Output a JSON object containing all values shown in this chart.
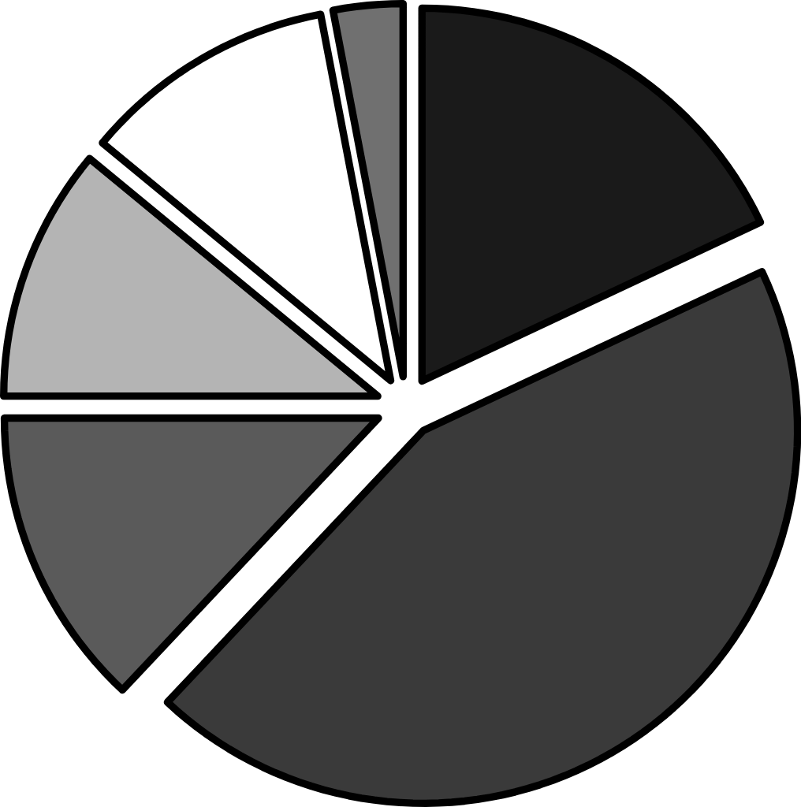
{
  "chart_data": {
    "type": "pie",
    "categories": [
      null,
      null,
      null,
      null,
      null,
      null
    ],
    "values": [
      18,
      44,
      13,
      11,
      11,
      3
    ],
    "colors": [
      "#1a1a1a",
      "#3a3a3a",
      "#5a5a5a",
      "#b4b4b4",
      "#ffffff",
      "#707070"
    ]
  }
}
